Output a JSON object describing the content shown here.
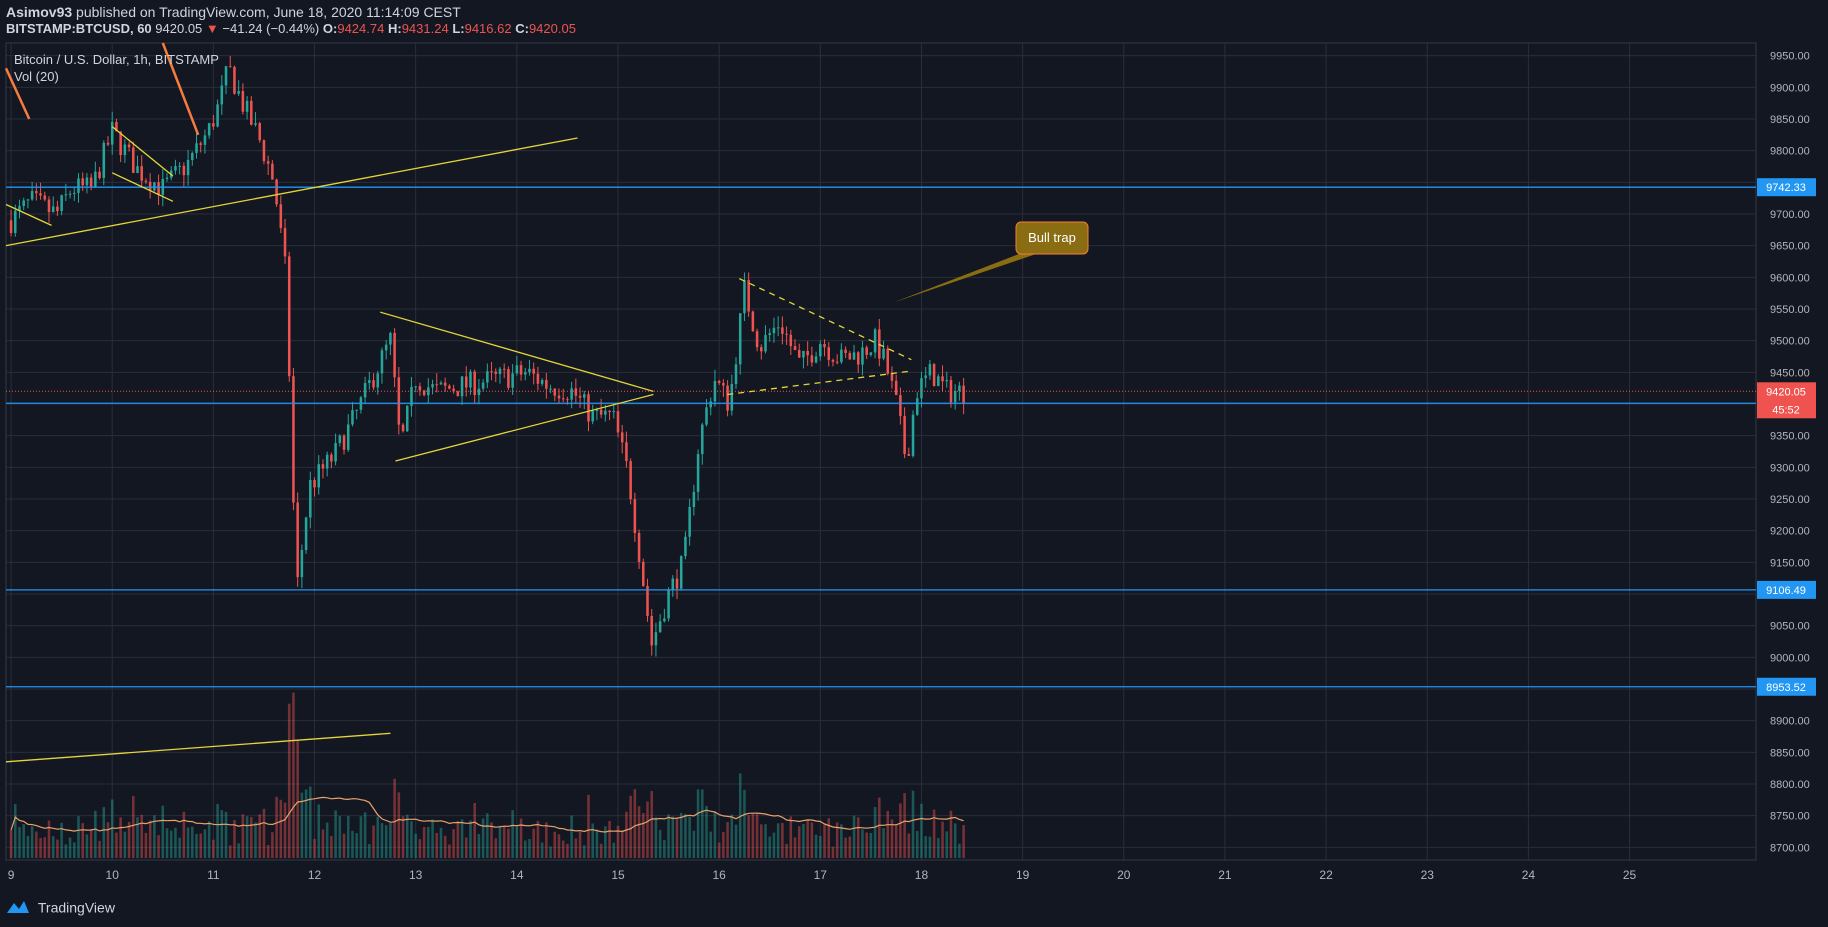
{
  "header": {
    "publisher": "Asimov93",
    "published_text": "published on TradingView.com, June 18, 2020 11:14:09 CEST",
    "symbol": "BITSTAMP:BTCUSD, 60",
    "last": "9420.05",
    "change_arrow": "▼",
    "change": "−41.24 (−0.44%)",
    "o_label": "O:",
    "o_value": "9424.74",
    "h_label": "H:",
    "h_value": "9431.24",
    "l_label": "L:",
    "l_value": "9416.62",
    "c_label": "C:",
    "c_value": "9420.05"
  },
  "legend": {
    "title": "Bitcoin / U.S. Dollar, 1h, BITSTAMP",
    "volume": "Vol (20)"
  },
  "footer": {
    "brand": "TradingView",
    "logo_icon": "tradingview-logo-icon"
  },
  "colors": {
    "background": "#131722",
    "grid": "#2a2e39",
    "up": "#26a69a",
    "down": "#ef5350",
    "trendline": "#e4d53a",
    "level": "#2196f3",
    "volume_ma": "#e8a26c",
    "callout": "#8a6d13"
  },
  "chart_data": {
    "type": "candlestick",
    "title": "Bitcoin / U.S. Dollar, 1h, BITSTAMP",
    "ylim": [
      8680,
      9970
    ],
    "y_ticks": [
      "9950.00",
      "9900.00",
      "9850.00",
      "9800.00",
      "9750.00",
      "9700.00",
      "9650.00",
      "9600.00",
      "9550.00",
      "9500.00",
      "9450.00",
      "9400.00",
      "9350.00",
      "9300.00",
      "9250.00",
      "9200.00",
      "9150.00",
      "9100.00",
      "9050.00",
      "9000.00",
      "8950.00",
      "8900.00",
      "8850.00",
      "8800.00",
      "8750.00",
      "8700.00"
    ],
    "x_range_days": [
      8.95,
      26.25
    ],
    "x_ticks": [
      "9",
      "10",
      "11",
      "12",
      "13",
      "14",
      "15",
      "16",
      "17",
      "18",
      "19",
      "20",
      "21",
      "22",
      "23",
      "24",
      "25"
    ],
    "price_series_keypoints": [
      [
        9.0,
        9690
      ],
      [
        9.2,
        9720
      ],
      [
        9.45,
        9700
      ],
      [
        9.6,
        9740
      ],
      [
        9.8,
        9740
      ],
      [
        10.0,
        9830
      ],
      [
        10.25,
        9770
      ],
      [
        10.5,
        9740
      ],
      [
        10.75,
        9780
      ],
      [
        10.95,
        9830
      ],
      [
        11.05,
        9870
      ],
      [
        11.15,
        9930
      ],
      [
        11.3,
        9870
      ],
      [
        11.45,
        9820
      ],
      [
        11.6,
        9750
      ],
      [
        11.72,
        9600
      ],
      [
        11.82,
        9100
      ],
      [
        11.95,
        9270
      ],
      [
        12.2,
        9320
      ],
      [
        12.4,
        9380
      ],
      [
        12.6,
        9450
      ],
      [
        12.75,
        9500
      ],
      [
        12.85,
        9330
      ],
      [
        13.0,
        9440
      ],
      [
        13.2,
        9420
      ],
      [
        13.5,
        9430
      ],
      [
        13.8,
        9440
      ],
      [
        14.1,
        9450
      ],
      [
        14.3,
        9430
      ],
      [
        14.55,
        9420
      ],
      [
        14.75,
        9380
      ],
      [
        14.95,
        9380
      ],
      [
        15.1,
        9290
      ],
      [
        15.25,
        9120
      ],
      [
        15.33,
        9020
      ],
      [
        15.5,
        9100
      ],
      [
        15.65,
        9150
      ],
      [
        15.8,
        9340
      ],
      [
        15.95,
        9440
      ],
      [
        16.1,
        9400
      ],
      [
        16.25,
        9580
      ],
      [
        16.4,
        9490
      ],
      [
        16.6,
        9530
      ],
      [
        16.8,
        9460
      ],
      [
        17.0,
        9500
      ],
      [
        17.2,
        9470
      ],
      [
        17.4,
        9480
      ],
      [
        17.55,
        9500
      ],
      [
        17.65,
        9460
      ],
      [
        17.75,
        9400
      ],
      [
        17.85,
        9310
      ],
      [
        17.95,
        9420
      ],
      [
        18.1,
        9450
      ],
      [
        18.25,
        9420
      ],
      [
        18.45,
        9420
      ]
    ],
    "volume_panel": {
      "bars": "one per hourly candle, values not labelled",
      "ma_label": "Vol (20)"
    },
    "levels": [
      {
        "value": 9742.33,
        "label": "9742.33"
      },
      {
        "value": 9401.17,
        "label": "9401.17"
      },
      {
        "value": 9106.49,
        "label": "9106.49"
      },
      {
        "value": 8953.52,
        "label": "8953.52"
      }
    ],
    "current_price": {
      "value": 9420.05,
      "label": "9420.05",
      "countdown": "45:52"
    },
    "annotations": [
      {
        "text": "Bull trap",
        "x": 17.72,
        "y": 9560
      }
    ],
    "trendlines": [
      {
        "style": "solid",
        "from": [
          8.95,
          9650
        ],
        "to": [
          14.6,
          9820
        ]
      },
      {
        "style": "solid",
        "from": [
          12.65,
          9545
        ],
        "to": [
          15.35,
          9420
        ]
      },
      {
        "style": "solid",
        "from": [
          12.8,
          9310
        ],
        "to": [
          15.35,
          9415
        ]
      },
      {
        "style": "solid",
        "from": [
          10.0,
          9838
        ],
        "to": [
          10.6,
          9760
        ]
      },
      {
        "style": "solid",
        "from": [
          10.0,
          9765
        ],
        "to": [
          10.6,
          9720
        ]
      },
      {
        "style": "solid",
        "from": [
          8.95,
          9715
        ],
        "to": [
          9.4,
          9682
        ]
      },
      {
        "style": "dashed",
        "from": [
          16.2,
          9598
        ],
        "to": [
          17.9,
          9470
        ]
      },
      {
        "style": "dashed",
        "from": [
          16.08,
          9415
        ],
        "to": [
          17.9,
          9452
        ]
      },
      {
        "style": "solid",
        "from": [
          8.95,
          8835
        ],
        "to": [
          12.75,
          8880
        ]
      }
    ],
    "arrows": [
      {
        "from": [
          8.95,
          9930
        ],
        "to": [
          9.18,
          9850
        ]
      },
      {
        "from": [
          10.5,
          9970
        ],
        "to": [
          10.85,
          9825
        ]
      }
    ]
  }
}
